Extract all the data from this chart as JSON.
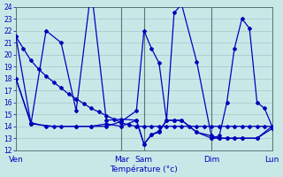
{
  "background_color": "#c8e8e8",
  "grid_color": "#a0c8c8",
  "line_color": "#0000bb",
  "xlabel": "Température (°c)",
  "ylim": [
    12,
    24
  ],
  "yticks": [
    12,
    13,
    14,
    15,
    16,
    17,
    18,
    19,
    20,
    21,
    22,
    23,
    24
  ],
  "day_labels": [
    "Ven",
    "Mar",
    "Sam",
    "Dim",
    "Lun"
  ],
  "day_x": [
    0,
    14,
    17,
    26,
    34
  ],
  "xlim": [
    0,
    34
  ],
  "lines": [
    {
      "x": [
        0,
        1,
        2,
        3,
        4,
        5,
        6,
        7,
        8,
        9,
        10,
        11,
        12,
        13,
        14,
        15,
        16,
        17,
        18,
        19,
        20,
        21,
        22,
        23,
        24,
        25,
        26,
        27,
        28,
        29,
        30,
        31,
        32,
        33,
        34
      ],
      "y": [
        21.5,
        20.5,
        19.5,
        18.8,
        18.2,
        17.7,
        17.2,
        16.7,
        16.3,
        15.9,
        15.5,
        15.2,
        14.9,
        14.6,
        14.3,
        14.1,
        14.0,
        14.0,
        14.0,
        14.0,
        14.0,
        14.0,
        14.0,
        14.0,
        14.0,
        14.0,
        14.0,
        14.0,
        14.0,
        14.0,
        14.0,
        14.0,
        14.0,
        14.0,
        14.0
      ]
    },
    {
      "x": [
        0,
        2,
        5,
        8,
        10,
        12,
        14,
        16,
        17,
        18,
        19,
        20,
        21,
        22,
        24,
        26,
        27,
        28,
        29,
        30,
        31,
        32,
        33,
        34
      ],
      "y": [
        18.0,
        14.2,
        14.0,
        14.0,
        14.0,
        14.0,
        14.4,
        15.3,
        22.0,
        20.5,
        19.3,
        14.5,
        23.5,
        24.2,
        19.4,
        13.0,
        13.2,
        16.0,
        20.5,
        23.0,
        22.2,
        16.0,
        15.5,
        14.0
      ]
    },
    {
      "x": [
        0,
        2,
        4,
        6,
        8,
        10,
        12,
        14,
        16,
        17,
        18,
        19,
        20,
        21,
        22,
        24,
        26,
        27,
        28,
        29,
        30,
        32,
        34
      ],
      "y": [
        21.5,
        14.2,
        22.0,
        21.0,
        15.3,
        25.5,
        14.5,
        14.6,
        14.5,
        12.5,
        13.3,
        13.6,
        14.5,
        14.5,
        14.5,
        13.5,
        13.2,
        13.0,
        13.0,
        13.0,
        13.0,
        13.0,
        13.8
      ]
    },
    {
      "x": [
        0,
        2,
        4,
        6,
        8,
        10,
        12,
        14,
        16,
        17,
        18,
        19,
        20,
        21,
        22,
        24,
        26,
        27,
        28,
        29,
        30,
        32,
        34
      ],
      "y": [
        18.0,
        14.3,
        14.0,
        14.0,
        14.0,
        14.0,
        14.2,
        14.0,
        14.5,
        12.5,
        13.3,
        13.5,
        14.5,
        14.5,
        14.5,
        13.5,
        13.0,
        13.0,
        13.0,
        13.0,
        13.0,
        13.0,
        14.0
      ]
    }
  ]
}
